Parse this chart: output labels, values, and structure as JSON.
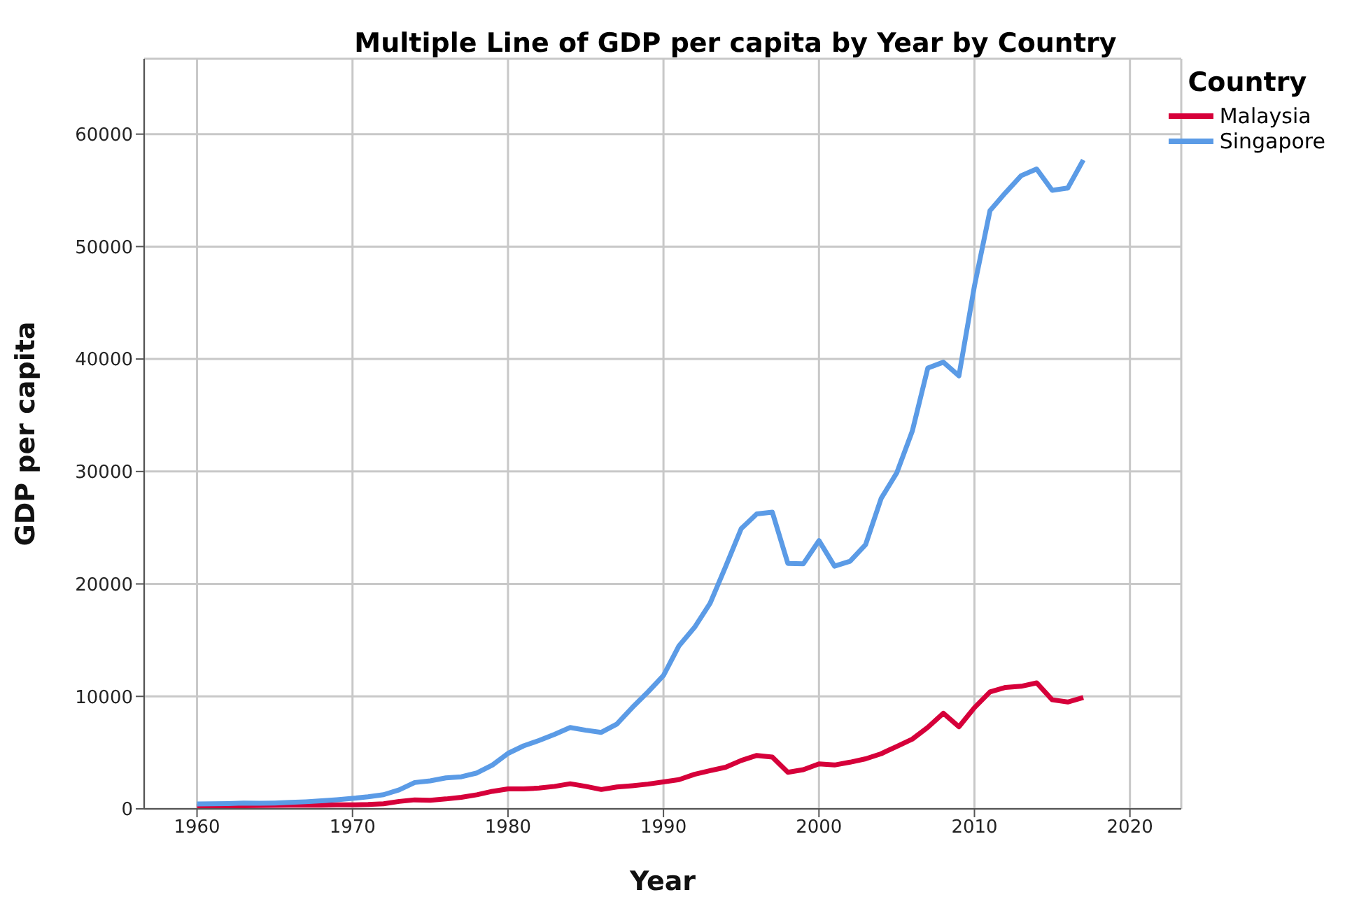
{
  "chart_data": {
    "type": "line",
    "title": "Multiple Line of GDP per capita by Year by Country",
    "xlabel": "Year",
    "ylabel": "GDP per capita",
    "legend_title": "Country",
    "legend": "top right",
    "grid": true,
    "marker": "none",
    "line_style": "solid",
    "x": [
      1960,
      1961,
      1962,
      1963,
      1964,
      1965,
      1966,
      1967,
      1968,
      1969,
      1970,
      1971,
      1972,
      1973,
      1974,
      1975,
      1976,
      1977,
      1978,
      1979,
      1980,
      1981,
      1982,
      1983,
      1984,
      1985,
      1986,
      1987,
      1988,
      1989,
      1990,
      1991,
      1992,
      1993,
      1994,
      1995,
      1996,
      1997,
      1998,
      1999,
      2000,
      2001,
      2002,
      2003,
      2004,
      2005,
      2006,
      2007,
      2008,
      2009,
      2010,
      2011,
      2012,
      2013,
      2014,
      2015,
      2016,
      2017
    ],
    "xlim": [
      1956.6,
      2023.3
    ],
    "xticks": [
      1960,
      1970,
      1980,
      1990,
      2000,
      2010,
      2020
    ],
    "ylim": [
      0,
      66700
    ],
    "yticks": [
      0,
      10000,
      20000,
      30000,
      40000,
      50000,
      60000
    ],
    "series": [
      {
        "name": "Malaysia",
        "color": "#d6003a",
        "values": [
          235,
          225,
          234,
          280,
          300,
          310,
          320,
          320,
          325,
          355,
          357,
          385,
          450,
          660,
          800,
          765,
          880,
          1030,
          1250,
          1560,
          1770,
          1770,
          1850,
          2000,
          2230,
          2000,
          1720,
          1940,
          2060,
          2200,
          2400,
          2600,
          3070,
          3400,
          3700,
          4300,
          4750,
          4600,
          3250,
          3480,
          4000,
          3900,
          4150,
          4450,
          4900,
          5550,
          6200,
          7250,
          8500,
          7300,
          9000,
          10400,
          10800,
          10900,
          11200,
          9700,
          9500,
          9900
        ]
      },
      {
        "name": "Singapore",
        "color": "#5b9be6",
        "values": [
          430,
          450,
          470,
          510,
          490,
          520,
          570,
          630,
          710,
          810,
          930,
          1070,
          1260,
          1690,
          2340,
          2490,
          2750,
          2850,
          3190,
          3900,
          4930,
          5600,
          6080,
          6630,
          7230,
          6990,
          6800,
          7540,
          9020,
          10390,
          11860,
          14500,
          16140,
          18290,
          21550,
          24920,
          26230,
          26380,
          21830,
          21800,
          23850,
          21580,
          22020,
          23500,
          27600,
          29870,
          33580,
          39200,
          39720,
          38500,
          46500,
          53200,
          54800,
          56300,
          56900,
          55000,
          55200,
          57700
        ]
      }
    ]
  }
}
